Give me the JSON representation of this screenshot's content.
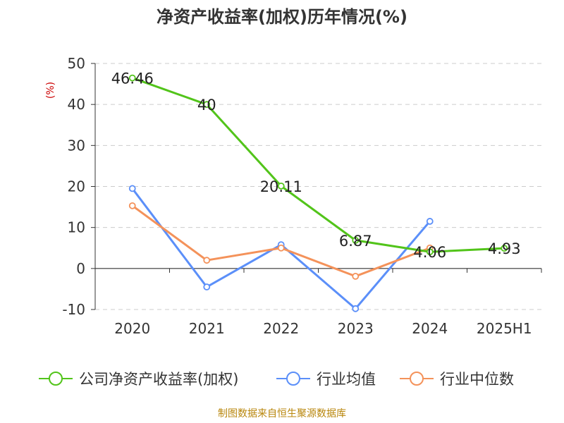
{
  "chart_data": {
    "type": "line",
    "title": "净资产收益率(加权)历年情况(%)",
    "ylabel": "(%)",
    "categories": [
      "2020",
      "2021",
      "2022",
      "2023",
      "2024",
      "2025H1"
    ],
    "ylim": [
      -10,
      50
    ],
    "yticks": [
      -10,
      0,
      10,
      20,
      30,
      40,
      50
    ],
    "grid": true,
    "legend_position": "bottom",
    "series": [
      {
        "name": "公司净资产收益率(加权)",
        "color": "#52c41a",
        "values": [
          46.46,
          40,
          20.11,
          6.87,
          4.06,
          4.93
        ],
        "labels": [
          "46.46",
          "40",
          "20.11",
          "6.87",
          "4.06",
          "4.93"
        ]
      },
      {
        "name": "行业均值",
        "color": "#5b8ff9",
        "values": [
          19.5,
          -4.5,
          5.8,
          -9.8,
          11.5,
          null
        ]
      },
      {
        "name": "行业中位数",
        "color": "#f4925a",
        "values": [
          15.3,
          2.0,
          5.0,
          -1.9,
          5.0,
          null
        ]
      }
    ]
  },
  "footer": "制图数据来自恒生聚源数据库"
}
